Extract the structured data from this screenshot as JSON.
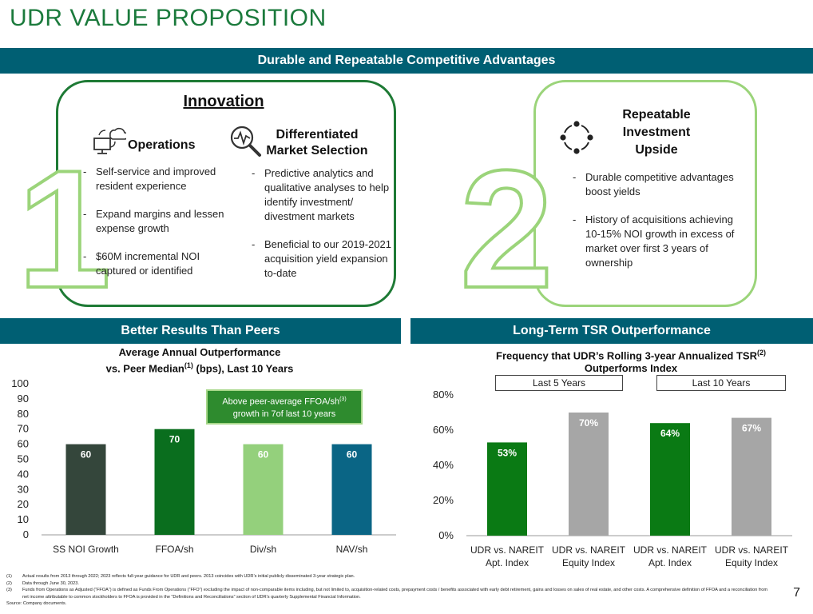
{
  "page": {
    "title": "UDR VALUE PROPOSITION",
    "page_number": "7",
    "colors": {
      "title": "#1b7a3c",
      "header_bar": "#005f73",
      "box_border": "#1e7a35",
      "box2_border": "#9bd47a"
    }
  },
  "banner": "Durable and Repeatable Competitive Advantages",
  "innovation": {
    "digit": "1",
    "heading": "Innovation",
    "operations": {
      "icon": "computer-cloud-icon",
      "heading": "Operations",
      "bullets": [
        "Self-service and improved resident experience",
        "Expand margins and lessen expense growth",
        "$60M incremental NOI captured or identified"
      ]
    },
    "market": {
      "icon": "magnifier-analytics-icon",
      "heading_line1": "Differentiated",
      "heading_line2": "Market Selection",
      "bullets": [
        "Predictive analytics and qualitative analyses to help identify investment/ divestment markets",
        "Beneficial to our 2019-2021 acquisition yield expansion to-date"
      ]
    }
  },
  "investment": {
    "digit": "2",
    "icon": "cycle-arrows-icon",
    "heading_line1": "Repeatable",
    "heading_line2": "Investment",
    "heading_line3": "Upside",
    "bullets": [
      "Durable competitive advantages boost yields",
      "History of acquisitions achieving 10-15% NOI growth in excess of market over first 3 years of ownership"
    ]
  },
  "left_section": {
    "header": "Better Results Than Peers",
    "chart_title_line1": "Average Annual Outperformance",
    "chart_title_line2a": "vs. Peer Median",
    "chart_title_sup": "(1)",
    "chart_title_line2b": " (bps), Last 10 Years",
    "callout_line1": "Above peer-average FFOA/sh",
    "callout_sup": "(3)",
    "callout_line2": "growth in 7of last 10 years"
  },
  "right_section": {
    "header": "Long-Term TSR Outperformance",
    "chart_title_line1a": "Frequency that UDR’s Rolling 3-year Annualized TSR",
    "chart_title_sup": "(2)",
    "chart_title_line2": "Outperforms Index",
    "legend_left": "Last 5 Years",
    "legend_right": "Last 10 Years"
  },
  "chart_data": [
    {
      "type": "bar",
      "categories": [
        "SS NOI Growth",
        "FFOA/sh",
        "Div/sh",
        "NAV/sh"
      ],
      "values": [
        60,
        70,
        60,
        60
      ],
      "data_labels": [
        "60",
        "70",
        "60",
        "60"
      ],
      "colors": [
        "#34463b",
        "#0a6e1e",
        "#94d07c",
        "#0a6585"
      ],
      "label_colors": [
        "#ffffff",
        "#ffffff",
        "#ffffff",
        "#ffffff"
      ],
      "yticks": [
        "0",
        "10",
        "20",
        "30",
        "40",
        "50",
        "60",
        "70",
        "80",
        "90",
        "100"
      ],
      "ylim": [
        0,
        100
      ],
      "title": "Average Annual Outperformance vs. Peer Median (bps), Last 10 Years"
    },
    {
      "type": "bar",
      "categories": [
        [
          "UDR vs. NAREIT",
          "Apt. Index"
        ],
        [
          "UDR vs. NAREIT",
          "Equity Index"
        ],
        [
          "UDR vs. NAREIT",
          "Apt. Index"
        ],
        [
          "UDR vs. NAREIT",
          "Equity Index"
        ]
      ],
      "values": [
        53,
        70,
        64,
        67
      ],
      "data_labels": [
        "53%",
        "70%",
        "64%",
        "67%"
      ],
      "colors": [
        "#0a7a14",
        "#a6a6a6",
        "#0a7a14",
        "#a6a6a6"
      ],
      "label_colors": [
        "#ffffff",
        "#ffffff",
        "#ffffff",
        "#ffffff"
      ],
      "yticks": [
        "0%",
        "20%",
        "40%",
        "60%",
        "80%"
      ],
      "ylim": [
        0,
        80
      ],
      "groups": [
        "Last 5 Years",
        "Last 10 Years"
      ],
      "title": "Frequency that UDR’s Rolling 3-year Annualized TSR Outperforms Index"
    }
  ],
  "footnotes": [
    {
      "n": "(1)",
      "text": "Actual results from 2013 through 2022; 2023 reflects full-year guidance for UDR and peers. 2013 coincides with UDR’s initial publicly disseminated 3-year strategic plan."
    },
    {
      "n": "(2)",
      "text": "Data through June 30, 2023."
    },
    {
      "n": "(3)",
      "text": "Funds from Operations as Adjusted (“FFOA”) is defined as Funds From Operations (“FFO”) excluding the impact of non-comparable items including, but not limited to, acquisition-related costs, prepayment costs / benefits associated with early debt retirement, gains and losses on sales of real estate, and other costs. A comprehensive definition of FFOA and a reconciliation from net income attributable to common stockholders to FFOA is provided in the “Definitions and Reconciliations” section of UDR’s quarterly Supplemental Financial Information."
    }
  ],
  "source": "Source:  Company documents."
}
